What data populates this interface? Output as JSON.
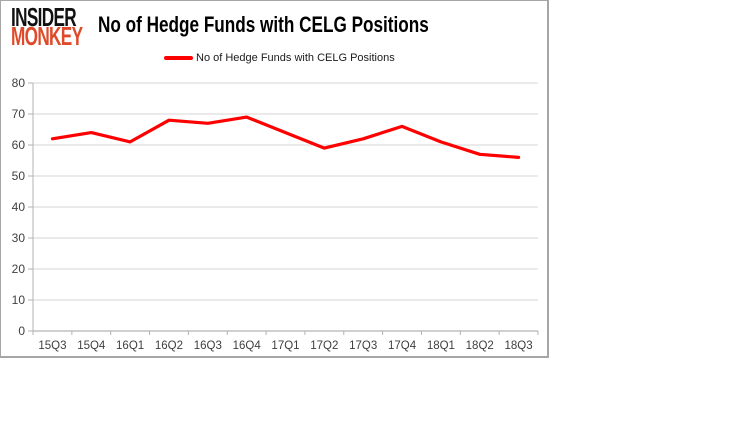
{
  "logo": {
    "line1": "INSIDER",
    "line2": "MONKEY"
  },
  "header": {
    "title": "No of Hedge Funds with CELG Positions"
  },
  "legend": {
    "label": "No of Hedge Funds with CELG Positions"
  },
  "colors": {
    "series_red": "#ff0000",
    "gridline": "#d6d6d6",
    "axis_line": "#b3b3b3",
    "tick_label": "#3f3f3f",
    "chart_border": "#a6a6a6",
    "background": "#ffffff",
    "logo_black": "#111111",
    "logo_red": "#df4a2b"
  },
  "chart_data": {
    "type": "line",
    "title": "No of Hedge Funds with CELG Positions",
    "categories": [
      "15Q3",
      "15Q4",
      "16Q1",
      "16Q2",
      "16Q3",
      "16Q4",
      "17Q1",
      "17Q2",
      "17Q3",
      "17Q4",
      "18Q1",
      "18Q2",
      "18Q3"
    ],
    "series": [
      {
        "name": "No of Hedge Funds with CELG Positions",
        "color": "#ff0000",
        "values": [
          62,
          64,
          61,
          68,
          67,
          69,
          64,
          59,
          62,
          66,
          61,
          57,
          56
        ]
      }
    ],
    "xlabel": "",
    "ylabel": "",
    "ylim": [
      0,
      80
    ],
    "yticks": [
      0,
      10,
      20,
      30,
      40,
      50,
      60,
      70,
      80
    ],
    "grid": true,
    "legend_position": "top-center"
  }
}
